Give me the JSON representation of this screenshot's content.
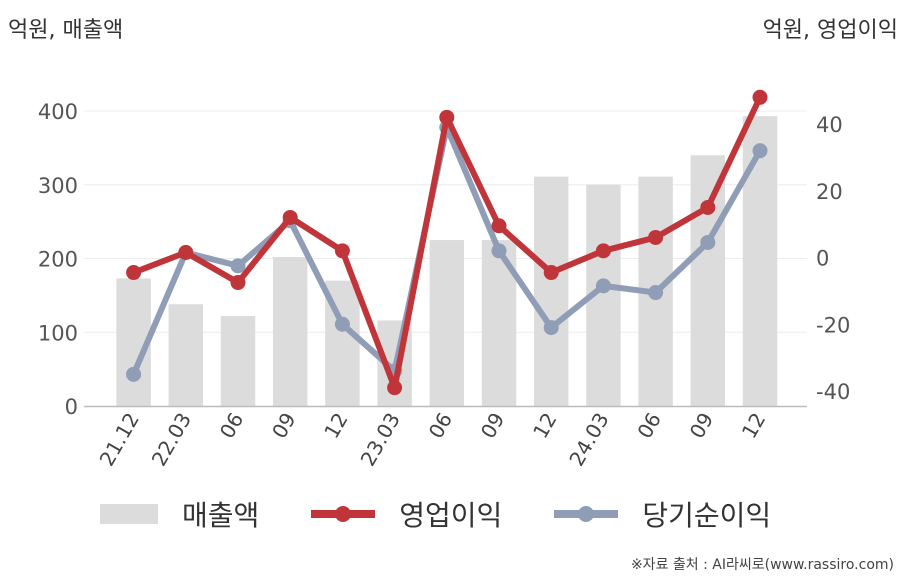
{
  "chart_data": {
    "type": "bar+line",
    "categories": [
      "21.12",
      "22.03",
      "06",
      "09",
      "12",
      "23.03",
      "06",
      "09",
      "12",
      "24.03",
      "06",
      "09",
      "12"
    ],
    "left_axis": {
      "unit_label": "억원, 매출액",
      "range": [
        0,
        400
      ],
      "ticks": [
        0,
        100,
        200,
        300,
        400
      ]
    },
    "right_axis": {
      "unit_label": "억원, 영업이익",
      "range": [
        -40,
        40
      ],
      "ticks": [
        -40,
        -20,
        0,
        20,
        40
      ]
    },
    "series": [
      {
        "name": "매출액",
        "type": "bar",
        "axis": "left",
        "color": "#dcdcdc",
        "values": [
          173,
          138,
          122,
          202,
          170,
          116,
          225,
          225,
          311,
          300,
          311,
          340,
          393
        ]
      },
      {
        "name": "영업이익",
        "type": "line",
        "axis": "right",
        "color": "#c0353a",
        "values": [
          -4.5,
          1.5,
          -7.5,
          12,
          2,
          -39,
          42,
          9.5,
          -4.5,
          2,
          6,
          15,
          48
        ]
      },
      {
        "name": "당기순이익",
        "type": "line",
        "axis": "right",
        "color": "#8f9db7",
        "values": [
          -35,
          1.5,
          -2.5,
          11,
          -20,
          -34,
          39,
          2,
          -21,
          -8.5,
          -10.5,
          4.5,
          32
        ]
      }
    ],
    "legend_position": "bottom",
    "grid": true,
    "source": "※자료 출처 : AI라씨로(www.rassiro.com)"
  }
}
